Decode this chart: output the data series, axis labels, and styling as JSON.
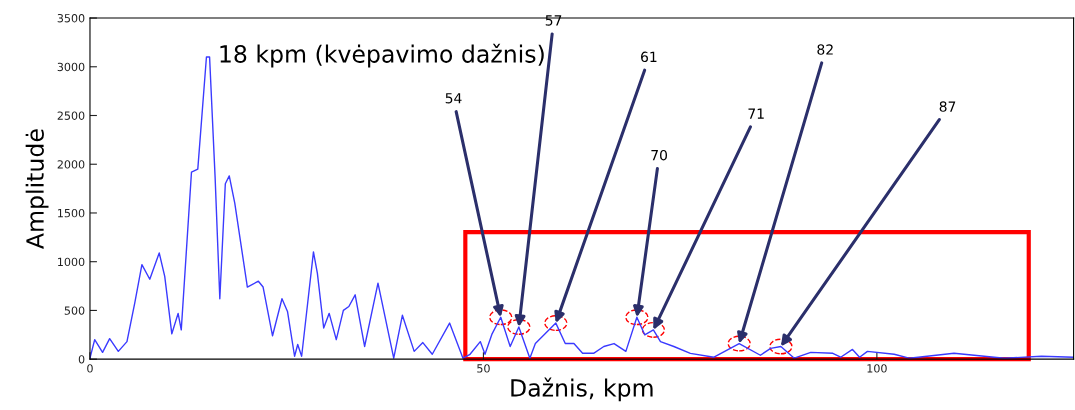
{
  "chart_data": {
    "type": "line",
    "xlabel": "Dažnis, kpm",
    "ylabel": "Amplitudė",
    "x": [
      0,
      0.6,
      1.6,
      2.5,
      3.6,
      4.7,
      5.7,
      6.6,
      7.6,
      8.8,
      9.5,
      10.4,
      11.2,
      11.6,
      12.9,
      13.7,
      14.8,
      15.2,
      15.9,
      16.5,
      17.2,
      17.7,
      18.4,
      20.0,
      21.4,
      22.0,
      23.2,
      24.4,
      25.1,
      26.0,
      26.4,
      26.9,
      28.4,
      28.9,
      29.7,
      30.4,
      31.3,
      32.2,
      32.9,
      33.7,
      34.9,
      36.6,
      38.6,
      39.7,
      41.2,
      42.3,
      43.5,
      45.7,
      47.4,
      48.3,
      49.6,
      50.2,
      51.1,
      52.2,
      53.4,
      54.5,
      55.9,
      56.6,
      59.2,
      60.4,
      61.5,
      62.6,
      64.0,
      65.3,
      66.6,
      68.1,
      69.5,
      70.5,
      71.6,
      72.5,
      74.2,
      76.3,
      79.3,
      82.5,
      85.2,
      86.5,
      87.8,
      89.5,
      91.6,
      94.4,
      95.4,
      96.9,
      97.8,
      98.8,
      102.2,
      104.1,
      109.8,
      116.2,
      120.9,
      125
    ],
    "series": [
      {
        "color": "#3a3aff",
        "values": [
          10,
          200,
          70,
          210,
          80,
          180,
          580,
          970,
          820,
          1090,
          850,
          260,
          470,
          300,
          1920,
          1950,
          3100,
          3100,
          1870,
          620,
          1800,
          1880,
          1600,
          740,
          800,
          740,
          240,
          620,
          490,
          30,
          150,
          30,
          1100,
          880,
          320,
          470,
          200,
          500,
          540,
          660,
          130,
          780,
          10,
          450,
          80,
          170,
          50,
          370,
          10,
          50,
          180,
          50,
          260,
          430,
          130,
          330,
          10,
          160,
          370,
          160,
          160,
          60,
          60,
          130,
          160,
          80,
          430,
          250,
          300,
          180,
          130,
          60,
          20,
          160,
          40,
          110,
          130,
          10,
          70,
          60,
          20,
          100,
          20,
          80,
          50,
          10,
          60,
          10,
          30,
          20
        ]
      }
    ],
    "xlim": [
      0,
      125
    ],
    "xticks": [
      0,
      50,
      100
    ],
    "ylim": [
      0,
      3500
    ],
    "yticks": [
      0,
      500,
      1000,
      1500,
      2000,
      2500,
      3000,
      3500
    ],
    "grid": false,
    "legend": false,
    "marker": "none",
    "line_style": "solid",
    "annotations": [
      "18 kpm (kvėpavimo dažnis)",
      {
        "text": "54",
        "x": 52.2,
        "y": 430
      },
      {
        "text": "57",
        "x": 54.5,
        "y": 330
      },
      {
        "text": "61",
        "x": 59.2,
        "y": 370
      },
      {
        "text": "70",
        "x": 69.5,
        "y": 430
      },
      {
        "text": "71",
        "x": 71.6,
        "y": 300
      },
      {
        "text": "82",
        "x": 82.5,
        "y": 160
      },
      {
        "text": "87",
        "x": 87.8,
        "y": 130
      }
    ]
  }
}
